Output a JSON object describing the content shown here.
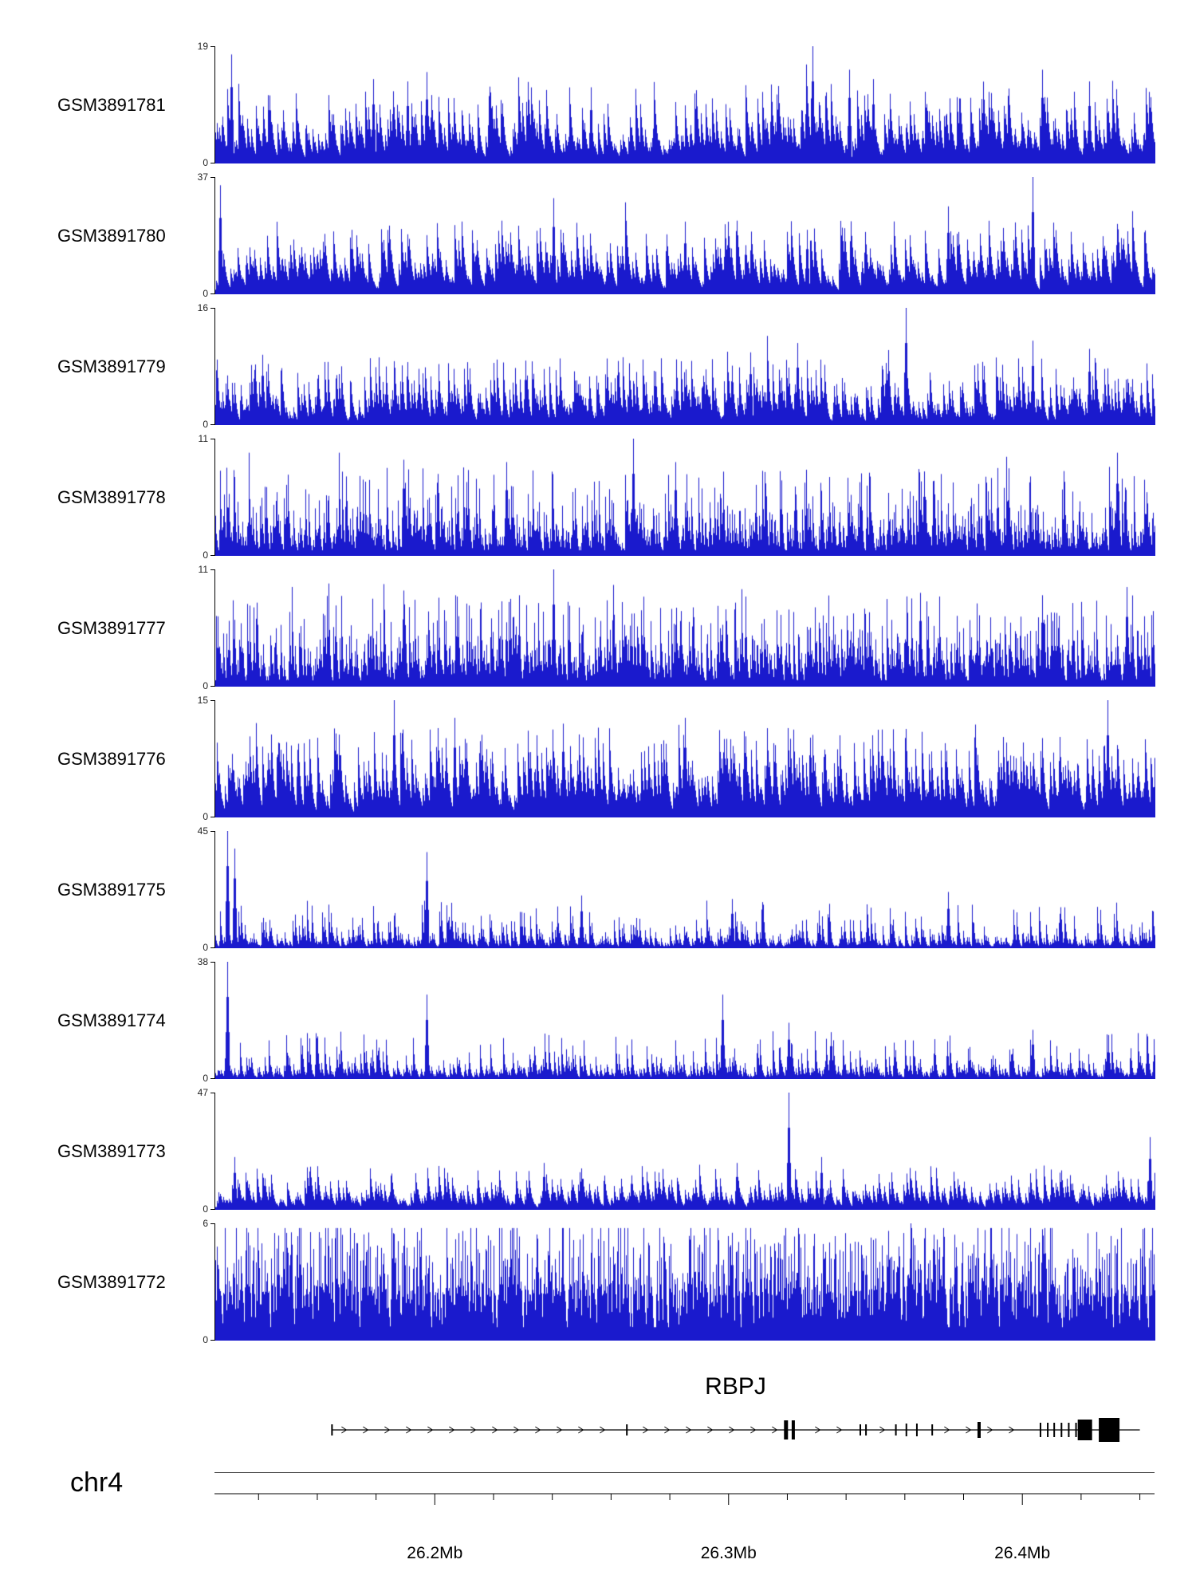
{
  "figure": {
    "chromosome_label": "chr4",
    "gene_label": "RBPJ"
  },
  "chart_data": {
    "type": "area",
    "title": "",
    "description": "Genome browser coverage tracks over the RBPJ locus on chr4",
    "signal_color": "#1a1acd",
    "x_axis": {
      "chromosome": "chr4",
      "start_mb": 26.125,
      "end_mb": 26.445,
      "major_ticks_mb": [
        26.2,
        26.3,
        26.4
      ],
      "major_tick_labels": [
        "26.2Mb",
        "26.3Mb",
        "26.4Mb"
      ],
      "minor_tick_interval_mb": 0.02
    },
    "tracks": [
      {
        "label": "GSM3891781",
        "ymin": 0,
        "ymax": 19,
        "seed": 81,
        "fill": 0.15,
        "spike_prob": 0.3,
        "spike_amp": 0.55,
        "decay": 0.78,
        "clip": 0.88,
        "peaks": [
          [
            0.017,
            0.93
          ],
          [
            0.168,
            0.72
          ],
          [
            0.205,
            0.7
          ],
          [
            0.225,
            0.78
          ],
          [
            0.4,
            0.65
          ],
          [
            0.636,
            1.0
          ],
          [
            0.675,
            0.8
          ],
          [
            0.7,
            0.72
          ],
          [
            0.88,
            0.8
          ],
          [
            0.93,
            0.7
          ]
        ]
      },
      {
        "label": "GSM3891780",
        "ymin": 0,
        "ymax": 37,
        "seed": 80,
        "fill": 0.13,
        "spike_prob": 0.25,
        "spike_amp": 0.5,
        "decay": 0.8,
        "clip": 0.88,
        "peaks": [
          [
            0.005,
            0.93
          ],
          [
            0.145,
            0.55
          ],
          [
            0.36,
            0.82
          ],
          [
            0.5,
            0.62
          ],
          [
            0.63,
            0.55
          ],
          [
            0.78,
            0.75
          ],
          [
            0.87,
            1.0
          ],
          [
            0.96,
            0.6
          ]
        ]
      },
      {
        "label": "GSM3891779",
        "ymin": 0,
        "ymax": 16,
        "seed": 79,
        "fill": 0.13,
        "spike_prob": 0.3,
        "spike_amp": 0.45,
        "decay": 0.72,
        "clip": 0.88,
        "peaks": [
          [
            0.05,
            0.6
          ],
          [
            0.33,
            0.55
          ],
          [
            0.57,
            0.62
          ],
          [
            0.62,
            0.7
          ],
          [
            0.735,
            1.0
          ],
          [
            0.87,
            0.72
          ],
          [
            0.93,
            0.65
          ]
        ]
      },
      {
        "label": "GSM3891778",
        "ymin": 0,
        "ymax": 11,
        "seed": 78,
        "fill": 0.16,
        "spike_prob": 0.35,
        "spike_amp": 0.6,
        "decay": 0.55,
        "clip": 0.88,
        "peaks": [
          [
            0.2,
            0.82
          ],
          [
            0.31,
            0.8
          ],
          [
            0.445,
            1.0
          ],
          [
            0.49,
            0.8
          ],
          [
            0.755,
            0.72
          ],
          [
            0.96,
            0.88
          ]
        ]
      },
      {
        "label": "GSM3891777",
        "ymin": 0,
        "ymax": 11,
        "seed": 77,
        "fill": 0.18,
        "spike_prob": 0.4,
        "spike_amp": 0.6,
        "decay": 0.55,
        "clip": 0.88,
        "peaks": [
          [
            0.2,
            0.82
          ],
          [
            0.36,
            1.0
          ],
          [
            0.75,
            0.8
          ],
          [
            0.88,
            0.78
          ],
          [
            0.97,
            0.85
          ]
        ]
      },
      {
        "label": "GSM3891776",
        "ymin": 0,
        "ymax": 15,
        "seed": 76,
        "fill": 0.17,
        "spike_prob": 0.35,
        "spike_amp": 0.6,
        "decay": 0.75,
        "clip": 0.88,
        "peaks": [
          [
            0.19,
            1.0
          ],
          [
            0.255,
            0.85
          ],
          [
            0.37,
            0.8
          ],
          [
            0.5,
            0.85
          ],
          [
            0.71,
            0.75
          ],
          [
            0.95,
            1.0
          ]
        ]
      },
      {
        "label": "GSM3891775",
        "ymin": 0,
        "ymax": 45,
        "seed": 75,
        "fill": 0.06,
        "spike_prob": 0.2,
        "spike_amp": 0.35,
        "decay": 0.6,
        "clip": 0.88,
        "peaks": [
          [
            0.013,
            1.0
          ],
          [
            0.02,
            0.85
          ],
          [
            0.225,
            0.82
          ],
          [
            0.39,
            0.45
          ],
          [
            0.55,
            0.42
          ],
          [
            0.78,
            0.48
          ],
          [
            0.9,
            0.35
          ]
        ]
      },
      {
        "label": "GSM3891774",
        "ymin": 0,
        "ymax": 38,
        "seed": 74,
        "fill": 0.06,
        "spike_prob": 0.2,
        "spike_amp": 0.35,
        "decay": 0.6,
        "clip": 0.88,
        "peaks": [
          [
            0.013,
            1.0
          ],
          [
            0.225,
            0.72
          ],
          [
            0.54,
            0.72
          ],
          [
            0.61,
            0.48
          ],
          [
            0.655,
            0.4
          ],
          [
            0.87,
            0.42
          ]
        ]
      },
      {
        "label": "GSM3891773",
        "ymin": 0,
        "ymax": 47,
        "seed": 73,
        "fill": 0.08,
        "spike_prob": 0.25,
        "spike_amp": 0.3,
        "decay": 0.75,
        "clip": 0.88,
        "peaks": [
          [
            0.02,
            0.45
          ],
          [
            0.35,
            0.4
          ],
          [
            0.555,
            0.4
          ],
          [
            0.61,
            1.0
          ],
          [
            0.645,
            0.45
          ],
          [
            0.995,
            0.62
          ]
        ]
      },
      {
        "label": "GSM3891772",
        "ymin": 0,
        "ymax": 6,
        "seed": 72,
        "fill": 0.38,
        "spike_prob": 0.5,
        "spike_amp": 0.55,
        "decay": 0.5,
        "clip": 0.96,
        "peaks": [
          [
            0.55,
            0.92
          ],
          [
            0.74,
            1.0
          ],
          [
            0.88,
            0.95
          ]
        ]
      }
    ],
    "gene": {
      "name": "RBPJ",
      "chromosome": "chr4",
      "start_mb": 26.165,
      "end_mb": 26.44,
      "strand": "+",
      "exons": [
        [
          0.0,
          2,
          14
        ],
        [
          0.365,
          2,
          14
        ],
        [
          0.562,
          5,
          24
        ],
        [
          0.571,
          4,
          24
        ],
        [
          0.654,
          2,
          14
        ],
        [
          0.661,
          2,
          14
        ],
        [
          0.698,
          2,
          14
        ],
        [
          0.711,
          2,
          16
        ],
        [
          0.724,
          2,
          16
        ],
        [
          0.743,
          2,
          14
        ],
        [
          0.801,
          4,
          20
        ],
        [
          0.877,
          2,
          18
        ],
        [
          0.886,
          2,
          18
        ],
        [
          0.894,
          2,
          18
        ],
        [
          0.903,
          2,
          18
        ],
        [
          0.912,
          2,
          18
        ],
        [
          0.921,
          2,
          18
        ],
        [
          0.932,
          18,
          26
        ],
        [
          0.962,
          26,
          30
        ]
      ]
    }
  }
}
